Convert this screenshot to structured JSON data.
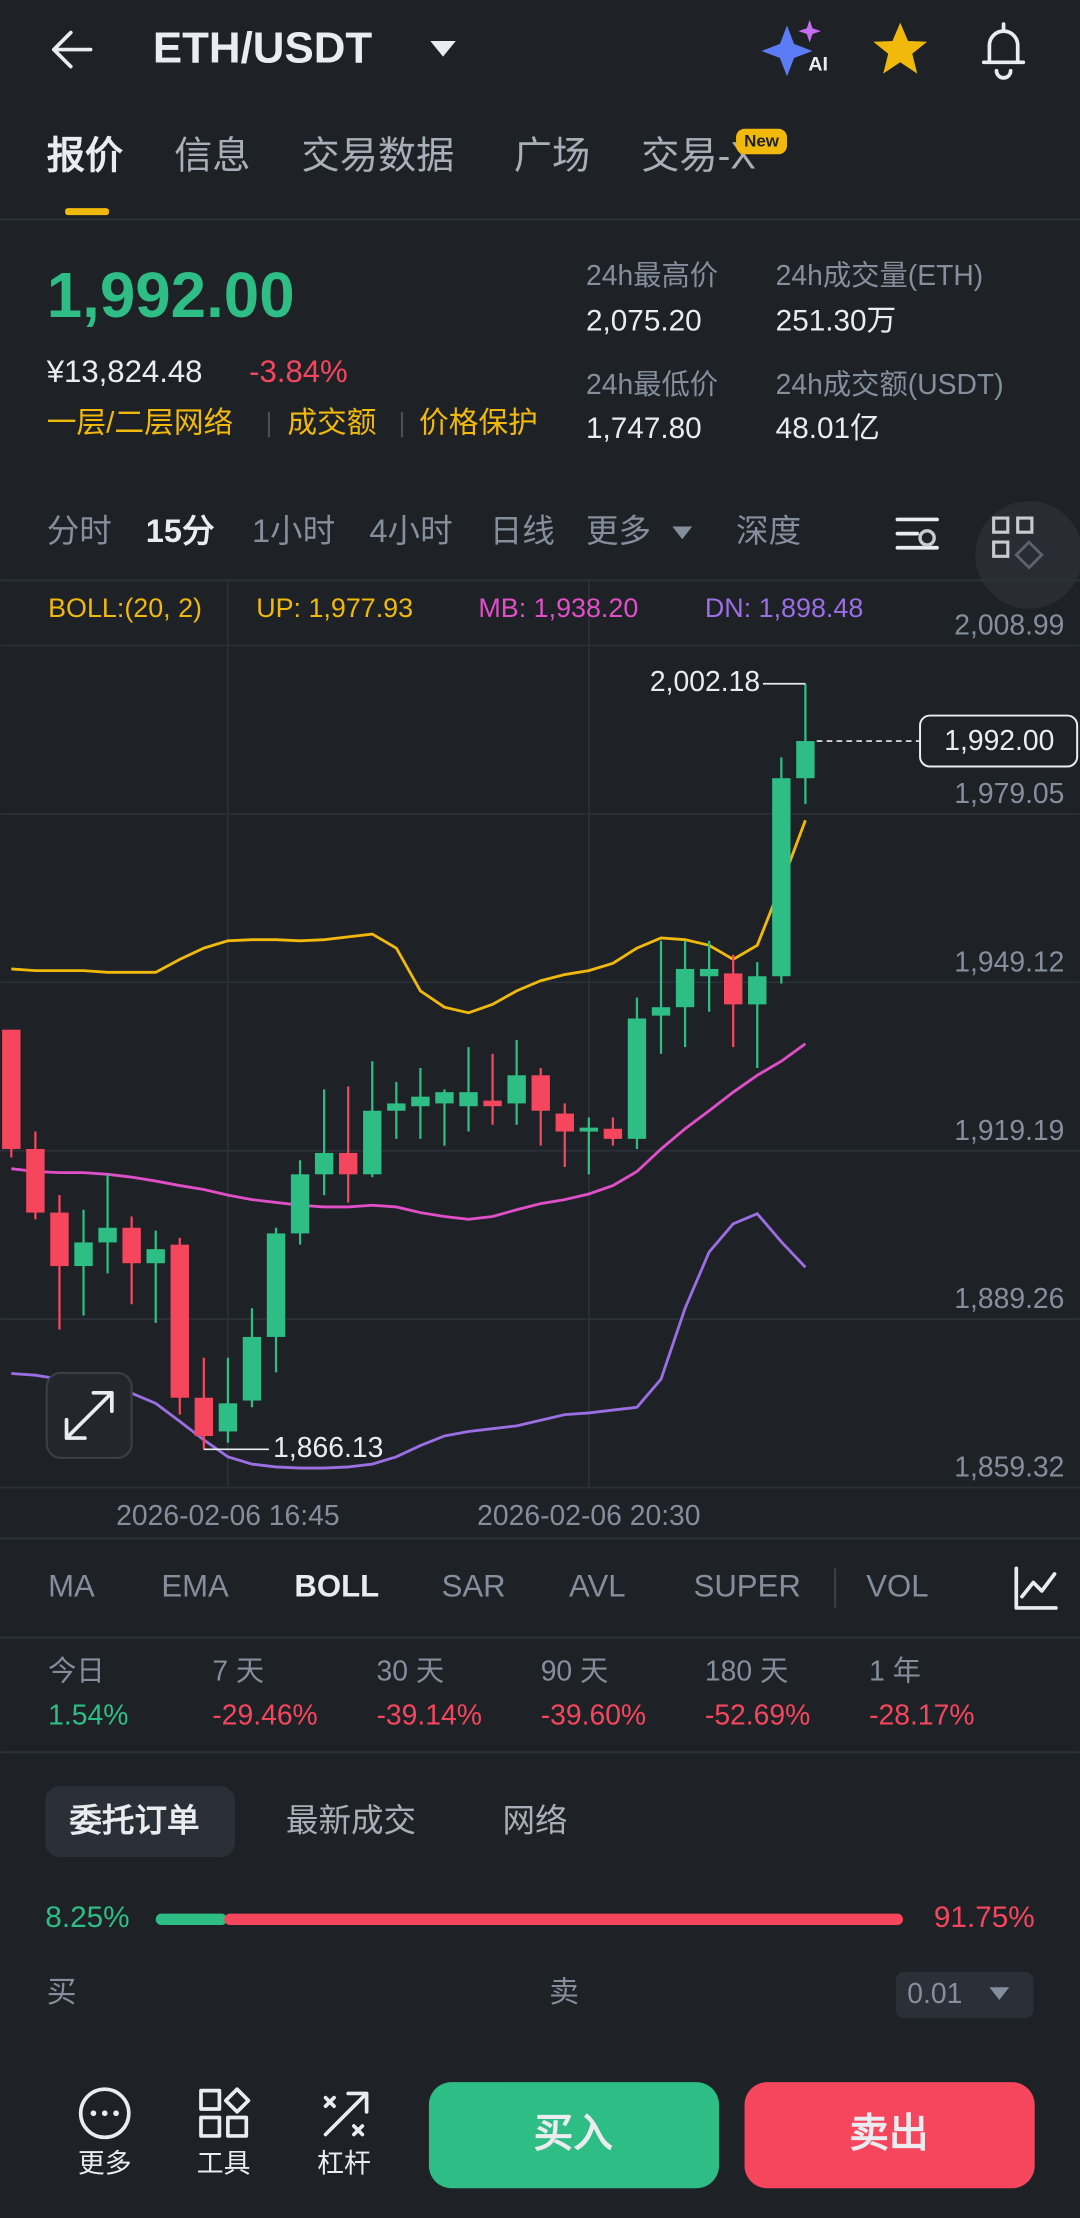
{
  "header": {
    "title": "ETH/USDT",
    "ai": "AI"
  },
  "tabs": {
    "items": [
      "报价",
      "信息",
      "交易数据",
      "广场",
      "交易-X"
    ],
    "badge": "New"
  },
  "ticker": {
    "price": "1,992.00",
    "cny": "¥13,824.48",
    "change": "-3.84%",
    "tags": [
      "一层/二层网络",
      "成交额",
      "价格保护"
    ]
  },
  "stats": [
    {
      "label": "24h最高价",
      "value": "2,075.20"
    },
    {
      "label": "24h最低价",
      "value": "1,747.80"
    },
    {
      "label": "24h成交量(ETH)",
      "value": "251.30万"
    },
    {
      "label": "24h成交额(USDT)",
      "value": "48.01亿"
    }
  ],
  "intervals": [
    "分时",
    "15分",
    "1小时",
    "4小时",
    "日线",
    "更多",
    "深度"
  ],
  "chart_data": {
    "type": "candlestick",
    "categories": [
      null,
      null,
      null,
      null,
      null,
      null,
      null,
      null,
      null,
      "2026-02-06 16:45",
      null,
      null,
      null,
      null,
      null,
      null,
      null,
      null,
      null,
      null,
      null,
      null,
      null,
      null,
      "2026-02-06 20:30",
      null,
      null,
      null,
      null,
      null,
      null,
      null,
      null,
      null
    ],
    "open": [
      1940.7,
      1919.5,
      1908.2,
      1898.7,
      1902.9,
      1905.5,
      1899.2,
      1902.5,
      1875.3,
      1869.3,
      1874.8,
      1886.1,
      1904.5,
      1915.0,
      1918.8,
      1915.0,
      1926.3,
      1927.1,
      1927.6,
      1927.1,
      1928.1,
      1927.6,
      1932.6,
      1925.8,
      1922.6,
      1923.1,
      1921.3,
      1943.2,
      1944.7,
      1950.2,
      1950.7,
      1945.2,
      1950.2,
      1985.4
    ],
    "high": [
      1940.7,
      1922.6,
      1911.3,
      1908.7,
      1915.0,
      1907.5,
      1905.0,
      1903.7,
      1882.4,
      1882.4,
      1891.2,
      1905.5,
      1917.5,
      1930.1,
      1930.6,
      1935.1,
      1931.4,
      1933.9,
      1930.1,
      1937.6,
      1936.4,
      1938.9,
      1933.9,
      1927.6,
      1925.1,
      1925.1,
      1946.4,
      1956.5,
      1956.5,
      1956.5,
      1954.0,
      1952.7,
      1989.1,
      2002.18
    ],
    "low": [
      1918.0,
      1907.0,
      1887.4,
      1889.9,
      1897.4,
      1891.9,
      1888.6,
      1872.3,
      1866.13,
      1867.3,
      1873.6,
      1879.8,
      1902.5,
      1911.3,
      1910.0,
      1914.5,
      1921.3,
      1921.3,
      1920.1,
      1922.6,
      1923.8,
      1923.8,
      1920.1,
      1916.3,
      1915.0,
      1920.1,
      1919.5,
      1936.4,
      1937.6,
      1943.9,
      1937.6,
      1933.9,
      1948.9,
      1980.8
    ],
    "close": [
      1919.5,
      1908.2,
      1898.7,
      1902.9,
      1905.5,
      1899.2,
      1901.7,
      1875.3,
      1868.5,
      1874.3,
      1886.1,
      1904.5,
      1915.0,
      1918.8,
      1915.0,
      1926.3,
      1927.6,
      1928.8,
      1929.6,
      1929.6,
      1927.1,
      1932.6,
      1926.3,
      1922.6,
      1923.3,
      1921.3,
      1942.7,
      1944.7,
      1951.5,
      1951.5,
      1945.2,
      1950.2,
      1985.4,
      1992.0
    ],
    "up_color": "#2ebd85",
    "down_color": "#f6465d",
    "indicator_label": "BOLL:(20, 2)",
    "series": [
      {
        "name": "UP: 1,977.93",
        "color": "#f0b90b",
        "values": [
          1951.5,
          1951.2,
          1951.2,
          1951.2,
          1950.9,
          1950.9,
          1950.9,
          1953.2,
          1955.2,
          1956.5,
          1956.7,
          1956.7,
          1956.5,
          1956.7,
          1957.2,
          1957.7,
          1955.2,
          1947.6,
          1944.7,
          1943.7,
          1945.2,
          1947.6,
          1949.4,
          1950.5,
          1951.2,
          1952.5,
          1955.2,
          1957.0,
          1956.7,
          1955.7,
          1953.2,
          1955.7,
          1966.5,
          1977.93
        ]
      },
      {
        "name": "MB: 1,938.20",
        "color": "#e04fc8",
        "values": [
          1916.0,
          1915.5,
          1915.3,
          1915.3,
          1915.0,
          1914.5,
          1913.8,
          1913.0,
          1912.3,
          1911.3,
          1910.5,
          1910.0,
          1909.5,
          1909.2,
          1909.2,
          1909.5,
          1909.2,
          1908.2,
          1907.5,
          1907.0,
          1907.5,
          1908.7,
          1909.8,
          1910.5,
          1911.5,
          1913.0,
          1915.5,
          1919.5,
          1923.1,
          1926.3,
          1929.6,
          1932.6,
          1935.1,
          1938.2
        ]
      },
      {
        "name": "DN: 1,898.48",
        "color": "#9b6fe3",
        "values": [
          1879.6,
          1879.3,
          1878.6,
          1877.8,
          1877.1,
          1876.1,
          1874.3,
          1871.1,
          1867.8,
          1864.8,
          1863.5,
          1863.0,
          1862.8,
          1862.8,
          1863.0,
          1863.5,
          1864.8,
          1866.8,
          1868.5,
          1869.3,
          1869.8,
          1870.3,
          1871.3,
          1872.3,
          1872.6,
          1873.1,
          1873.6,
          1878.6,
          1891.2,
          1901.2,
          1906.2,
          1908.0,
          1903.0,
          1898.48
        ]
      }
    ],
    "ylim": [
      1859.32,
      2008.99
    ],
    "yticks": [
      {
        "value": 2008.99,
        "label": "2,008.99"
      },
      {
        "value": 1979.05,
        "label": "1,979.05"
      },
      {
        "value": 1949.12,
        "label": "1,949.12"
      },
      {
        "value": 1919.19,
        "label": "1,919.19"
      },
      {
        "value": 1889.26,
        "label": "1,889.26"
      },
      {
        "value": 1859.32,
        "label": "1,859.32"
      }
    ],
    "annotations": [
      {
        "value": 2002.18,
        "label": "2,002.18"
      },
      {
        "value": 1866.13,
        "label": "1,866.13"
      }
    ],
    "last_price": {
      "value": 1992.0,
      "label": "1,992.00"
    },
    "grid": true
  },
  "indicators": [
    "MA",
    "EMA",
    "BOLL",
    "SAR",
    "AVL",
    "SUPER",
    "VOL"
  ],
  "performance": [
    {
      "label": "今日",
      "value": "1.54%"
    },
    {
      "label": "7 天",
      "value": "-29.46%"
    },
    {
      "label": "30 天",
      "value": "-39.14%"
    },
    {
      "label": "90 天",
      "value": "-39.60%"
    },
    {
      "label": "180 天",
      "value": "-52.69%"
    },
    {
      "label": "1 年",
      "value": "-28.17%"
    }
  ],
  "orderbook": {
    "tabs": [
      "委托订单",
      "最新成交",
      "网络"
    ],
    "buy_ratio": {
      "value": 8.25,
      "label": "8.25%"
    },
    "sell_ratio": {
      "value": 91.75,
      "label": "91.75%"
    },
    "buy": "买",
    "sell": "卖",
    "precision": "0.01"
  },
  "toolbar": {
    "more": "更多",
    "tools": "工具",
    "leverage": "杠杆",
    "buy": "买入",
    "sell": "卖出"
  }
}
